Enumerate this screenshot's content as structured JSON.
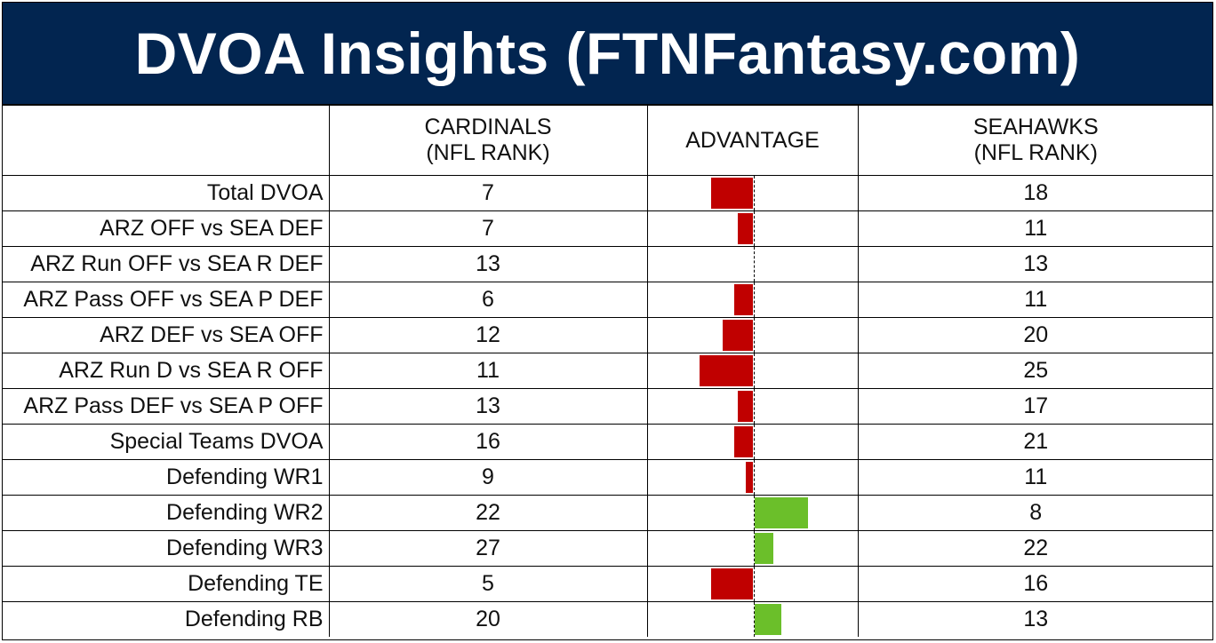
{
  "title": "DVOA Insights (FTNFantasy.com)",
  "chart_data": {
    "type": "table",
    "columns": {
      "left_team": [
        "CARDINALS",
        "(NFL RANK)"
      ],
      "advantage": "ADVANTAGE",
      "right_team": [
        "SEAHAWKS",
        "(NFL RANK)"
      ]
    },
    "advantage_range": [
      -15,
      15
    ],
    "colors": {
      "left_advantage": "#C00000",
      "right_advantage": "#6BBF2A"
    },
    "rows": [
      {
        "label": "Total DVOA",
        "left": 7,
        "right": 18,
        "advantage": -11
      },
      {
        "label": "ARZ OFF vs SEA DEF",
        "left": 7,
        "right": 11,
        "advantage": -4
      },
      {
        "label": "ARZ Run OFF vs SEA R DEF",
        "left": 13,
        "right": 13,
        "advantage": 0
      },
      {
        "label": "ARZ Pass OFF vs SEA P DEF",
        "left": 6,
        "right": 11,
        "advantage": -5
      },
      {
        "label": "ARZ DEF vs SEA OFF",
        "left": 12,
        "right": 20,
        "advantage": -8
      },
      {
        "label": "ARZ Run D vs SEA R OFF",
        "left": 11,
        "right": 25,
        "advantage": -14
      },
      {
        "label": "ARZ Pass DEF vs SEA P OFF",
        "left": 13,
        "right": 17,
        "advantage": -4
      },
      {
        "label": "Special Teams DVOA",
        "left": 16,
        "right": 21,
        "advantage": -5
      },
      {
        "label": "Defending WR1",
        "left": 9,
        "right": 11,
        "advantage": -2
      },
      {
        "label": "Defending WR2",
        "left": 22,
        "right": 8,
        "advantage": 14
      },
      {
        "label": "Defending WR3",
        "left": 27,
        "right": 22,
        "advantage": 5
      },
      {
        "label": "Defending TE",
        "left": 5,
        "right": 16,
        "advantage": -11
      },
      {
        "label": "Defending RB",
        "left": 20,
        "right": 13,
        "advantage": 7
      }
    ]
  }
}
